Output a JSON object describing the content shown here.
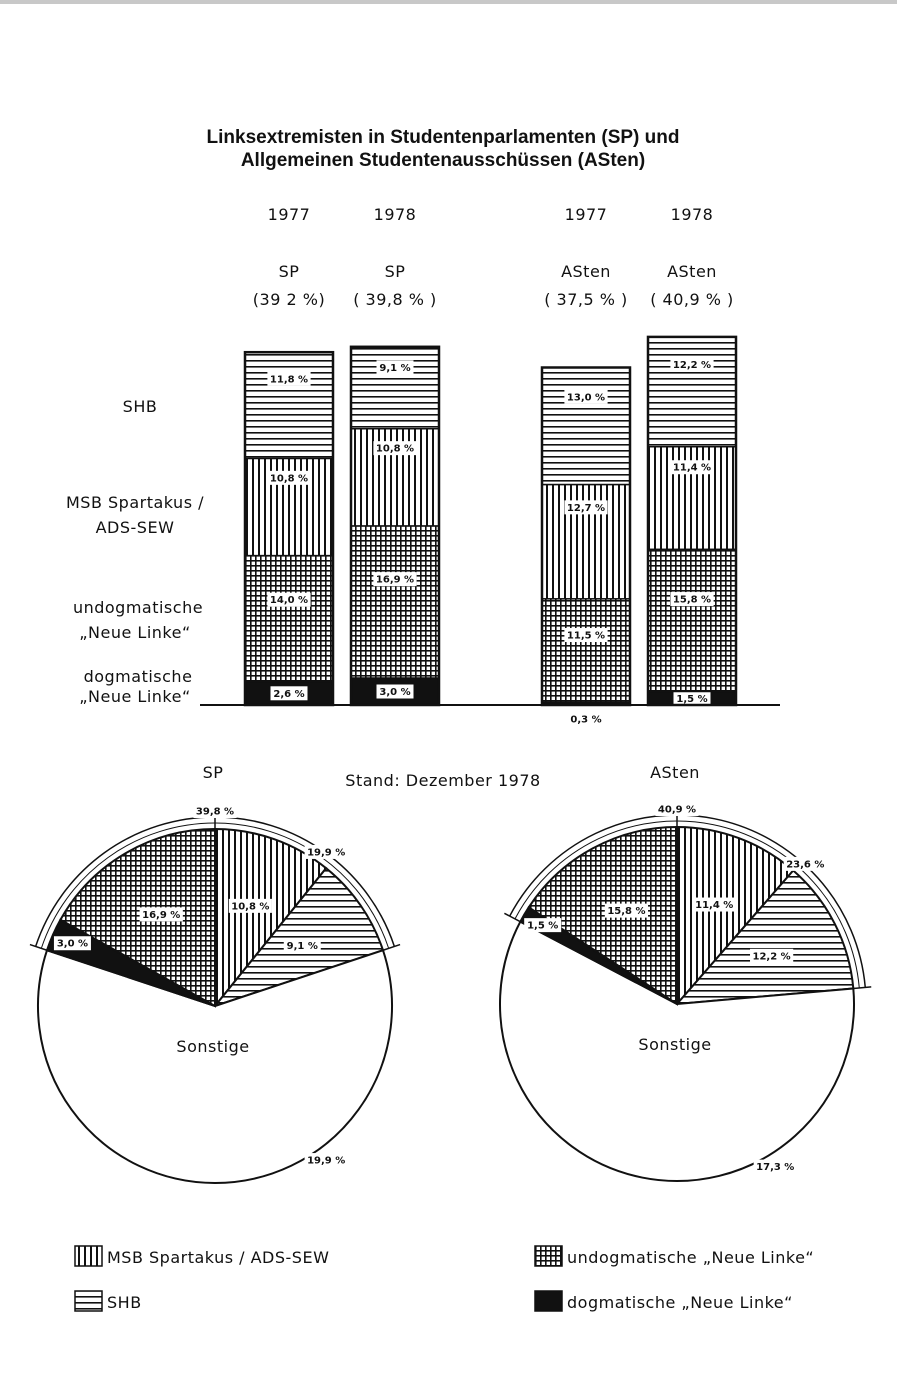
{
  "title": [
    "Linksextremisten in Studentenparlamenten (SP) und",
    "Allgemeinen Studentenausschüssen (ASten)"
  ],
  "colors": {
    "ink": "#111111",
    "paper": "#ffffff"
  },
  "patterns": {
    "msb": "vertical-hatch",
    "shb": "horizontal-hatch",
    "undog": "crosshatch",
    "dog": "solid-black"
  },
  "bar_labels": {
    "categories": [
      "SHB",
      "MSB Spartakus /",
      "ADS-SEW",
      "undogmatische",
      "„Neue Linke“",
      "dogmatische",
      "„Neue Linke“"
    ]
  },
  "stand": "Stand: Dezember 1978",
  "sonstige": "Sonstige",
  "legend": {
    "msb": "MSB Spartakus / ADS-SEW",
    "shb": "SHB",
    "undog": "undogmatische „Neue Linke“",
    "dog": "dogmatische „Neue Linke“"
  },
  "chart_data": [
    {
      "type": "bar",
      "stacked": true,
      "categories": [
        "1977",
        "1978",
        "1977",
        "1978"
      ],
      "groups": [
        "SP",
        "SP",
        "ASten",
        "ASten"
      ],
      "totals_text": [
        "(39 2 %)",
        "( 39,8 % )",
        "( 37,5 % )",
        "( 40,9 % )"
      ],
      "series": [
        {
          "key": "dog",
          "values": [
            2.6,
            3.0,
            0.3,
            1.5
          ],
          "labels": [
            "2,6 %",
            "3,0 %",
            "0,3 %",
            "1,5 %"
          ]
        },
        {
          "key": "undog",
          "values": [
            14.0,
            16.9,
            11.5,
            15.8
          ],
          "labels": [
            "14,0 %",
            "16,9 %",
            "11,5 %",
            "15,8 %"
          ]
        },
        {
          "key": "msb",
          "values": [
            10.8,
            10.8,
            12.7,
            11.4
          ],
          "labels": [
            "10,8 %",
            "10,8 %",
            "12,7 %",
            "11,4 %"
          ]
        },
        {
          "key": "shb",
          "values": [
            11.8,
            9.1,
            13.0,
            12.2
          ],
          "labels": [
            "11,8 %",
            "9,1 %",
            "13,0 %",
            "12,2 %"
          ]
        }
      ]
    },
    {
      "type": "pie",
      "title": "SP",
      "slices": [
        {
          "key": "msb",
          "value": 10.8,
          "label": "10,8 %"
        },
        {
          "key": "shb",
          "value": 9.1,
          "label": "9,1 %"
        },
        {
          "key": "sonstige",
          "value": 60.2,
          "label": ""
        },
        {
          "key": "dog",
          "value": 3.0,
          "label": "3,0 %"
        },
        {
          "key": "undog",
          "value": 16.9,
          "label": "16,9 %"
        }
      ],
      "arcs": [
        {
          "label": "39,8 %",
          "value": 39.8
        },
        {
          "label": "19,9 %",
          "value": 19.9
        },
        {
          "label": "19,9 %",
          "value": 19.9
        }
      ]
    },
    {
      "type": "pie",
      "title": "ASten",
      "slices": [
        {
          "key": "msb",
          "value": 11.4,
          "label": "11,4 %"
        },
        {
          "key": "shb",
          "value": 12.2,
          "label": "12,2 %"
        },
        {
          "key": "sonstige",
          "value": 59.1,
          "label": ""
        },
        {
          "key": "dog",
          "value": 1.5,
          "label": "1,5 %"
        },
        {
          "key": "undog",
          "value": 15.8,
          "label": "15,8 %"
        }
      ],
      "arcs": [
        {
          "label": "40,9 %",
          "value": 40.9
        },
        {
          "label": "17,3 %",
          "value": 17.3
        },
        {
          "label": "23,6 %",
          "value": 23.6
        }
      ]
    }
  ]
}
